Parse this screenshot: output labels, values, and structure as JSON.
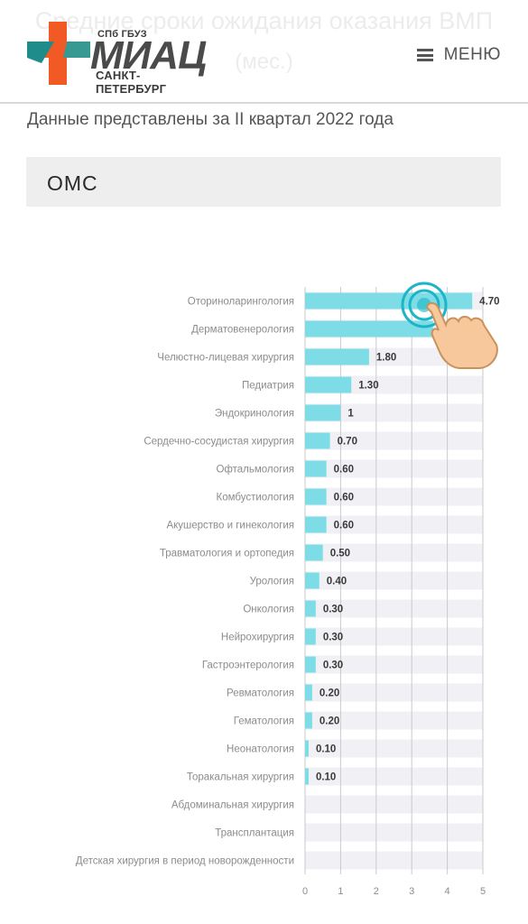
{
  "page": {
    "ghost_title_line1": "Средние сроки ожидания оказания ВМП",
    "ghost_title_line2": "(мес.)"
  },
  "header": {
    "logo_top": "СПб ГБУЗ",
    "logo_main": "МИАЦ",
    "logo_sub": "САНКТ-ПЕТЕРБУРГ",
    "menu_label": "МЕНЮ",
    "colors": {
      "cross_orange": "#f15a24",
      "cross_teal": "#1f8c8c"
    }
  },
  "period_text": "Данные представлены за II квартал 2022 года",
  "section_label": "ОМС",
  "chart_data": {
    "type": "bar",
    "orientation": "horizontal",
    "categories": [
      "Оториноларингология",
      "Дерматовенерология",
      "Челюстно-лицевая хирургия",
      "Педиатрия",
      "Эндокринология",
      "Сердечно-сосудистая хирургия",
      "Офтальмология",
      "Комбустиология",
      "Акушерство и гинекология",
      "Травматология и ортопедия",
      "Урология",
      "Онкология",
      "Нейрохирургия",
      "Гастроэнтерология",
      "Ревматология",
      "Гематология",
      "Неонатология",
      "Торакальная хирургия",
      "Абдоминальная хирургия",
      "Трансплантация",
      "Детская хирургия в период новорожденности"
    ],
    "values": [
      4.7,
      3.6,
      1.8,
      1.3,
      1,
      0.7,
      0.6,
      0.6,
      0.6,
      0.5,
      0.4,
      0.3,
      0.3,
      0.3,
      0.2,
      0.2,
      0.1,
      0.1,
      0,
      0,
      0
    ],
    "labels": [
      "4.70",
      "",
      "1.80",
      "1.30",
      "1",
      "0.70",
      "0.60",
      "0.60",
      "0.60",
      "0.50",
      "0.40",
      "0.30",
      "0.30",
      "0.30",
      "0.20",
      "0.20",
      "0.10",
      "0.10",
      "",
      "",
      ""
    ],
    "xlim": [
      0,
      5
    ],
    "xticks": [
      "0",
      "1",
      "2",
      "3",
      "4",
      "5"
    ],
    "grid": true,
    "bar_color": "#7ddce6",
    "track_color": "#f1f1f5"
  }
}
